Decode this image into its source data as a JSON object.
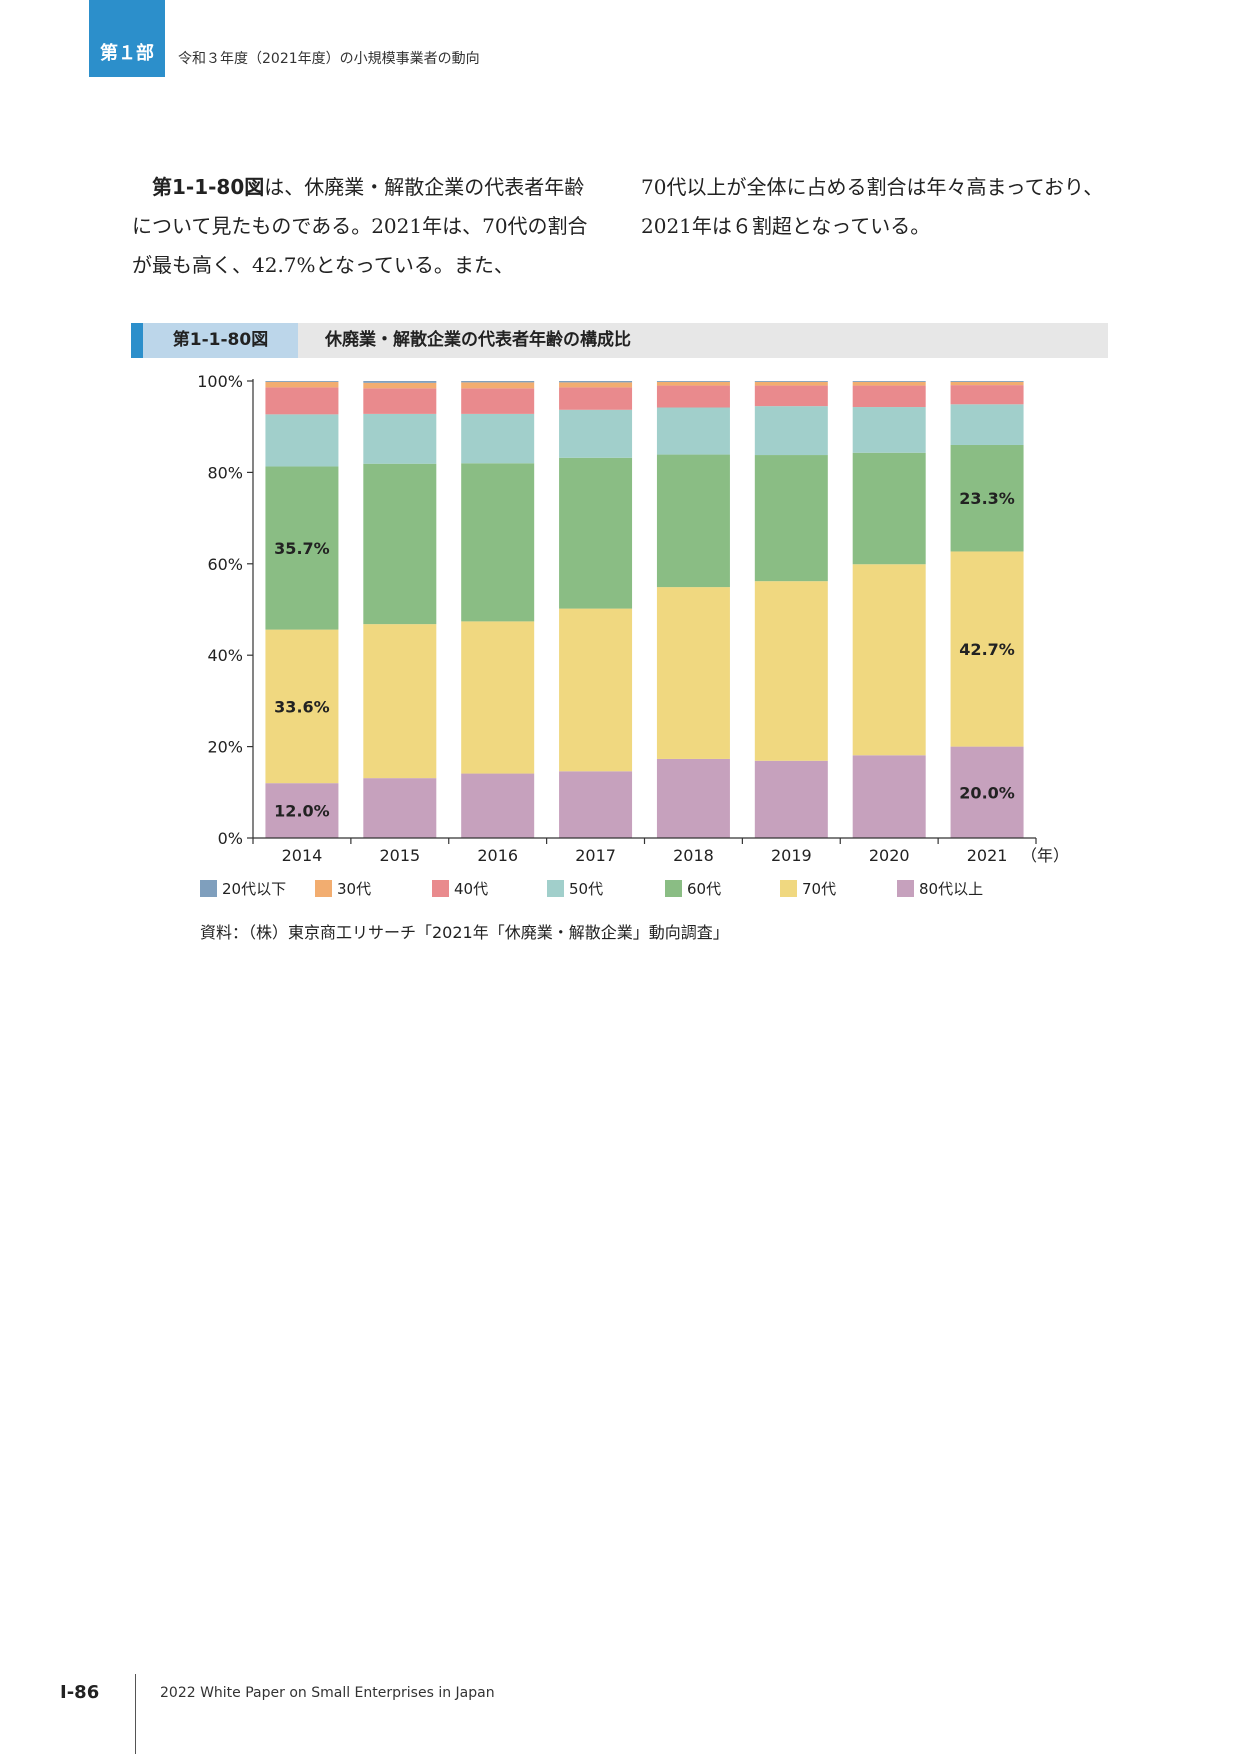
{
  "header": {
    "part_label": "第１部",
    "part_title": "令和３年度（2021年度）の小規模事業者の動向"
  },
  "body": {
    "left_ref": "第1-1-80図",
    "left_text": "は、休廃業・解散企業の代表者年齢について見たものである。2021年は、70代の割合が最も高く、42.7%となっている。また、",
    "right_text": "70代以上が全体に占める割合は年々高まっており、2021年は６割超となっている。"
  },
  "figure": {
    "number": "第1-1-80図",
    "title": "休廃業・解散企業の代表者年齢の構成比"
  },
  "chart_data": {
    "type": "bar",
    "stacked": true,
    "categories": [
      "2014",
      "2015",
      "2016",
      "2017",
      "2018",
      "2019",
      "2020",
      "2021"
    ],
    "x_unit_label": "（年）",
    "ylim": [
      0,
      100
    ],
    "yticks": [
      "0%",
      "20%",
      "40%",
      "60%",
      "80%",
      "100%"
    ],
    "series": [
      {
        "name": "80代以上",
        "color": "#c6a1bd",
        "values": [
          12.0,
          13.1,
          14.1,
          14.6,
          17.3,
          16.9,
          18.1,
          20.0
        ]
      },
      {
        "name": "70代",
        "color": "#f0d880",
        "values": [
          33.6,
          33.7,
          33.3,
          35.6,
          37.6,
          39.3,
          41.8,
          42.7
        ]
      },
      {
        "name": "60代",
        "color": "#8abd84",
        "values": [
          35.7,
          35.1,
          34.6,
          33.0,
          29.0,
          27.6,
          24.4,
          23.3
        ]
      },
      {
        "name": "50代",
        "color": "#a1cfcb",
        "values": [
          11.4,
          10.9,
          10.8,
          10.5,
          10.3,
          10.7,
          10.0,
          8.9
        ]
      },
      {
        "name": "40代",
        "color": "#e98a8d",
        "values": [
          5.9,
          5.6,
          5.6,
          4.9,
          4.8,
          4.5,
          4.7,
          4.2
        ]
      },
      {
        "name": "30代",
        "color": "#f2ad70",
        "values": [
          1.2,
          1.2,
          1.3,
          1.1,
          0.8,
          0.8,
          0.8,
          0.7
        ]
      },
      {
        "name": "20代以下",
        "color": "#7f9fbd",
        "values": [
          0.2,
          0.4,
          0.3,
          0.3,
          0.2,
          0.2,
          0.2,
          0.2
        ]
      }
    ],
    "legend_order": [
      "20代以下",
      "30代",
      "40代",
      "50代",
      "60代",
      "70代",
      "80代以上"
    ],
    "data_labels": [
      {
        "category": "2014",
        "series": "80代以上",
        "text": "12.0%"
      },
      {
        "category": "2014",
        "series": "70代",
        "text": "33.6%"
      },
      {
        "category": "2014",
        "series": "60代",
        "text": "35.7%"
      },
      {
        "category": "2021",
        "series": "80代以上",
        "text": "20.0%"
      },
      {
        "category": "2021",
        "series": "70代",
        "text": "42.7%"
      },
      {
        "category": "2021",
        "series": "60代",
        "text": "23.3%"
      }
    ],
    "grid": false,
    "legend_position": "bottom"
  },
  "source": "資料：（株）東京商工リサーチ「2021年「休廃業・解散企業」動向調査」",
  "footer": {
    "page_number": "Ⅰ-86",
    "publication": "2022 White Paper on Small Enterprises in Japan"
  }
}
